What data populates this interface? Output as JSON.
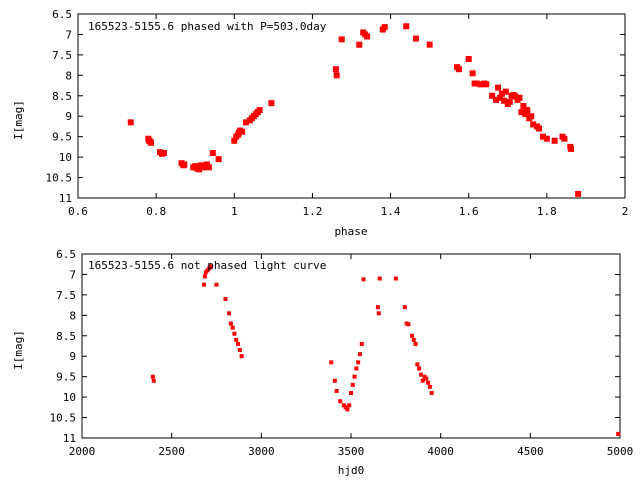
{
  "chart_data": [
    {
      "type": "scatter",
      "title": "165523-5155.6 phased with P=503.0day",
      "xlabel": "phase",
      "ylabel": "I[mag]",
      "xlim": [
        0.6,
        2.0
      ],
      "ylim": [
        6.5,
        11.0
      ],
      "y_inverted": true,
      "grid": false,
      "marker_color": "#ff0000",
      "x_ticks": [
        "0.6",
        "0.8",
        "1",
        "1.2",
        "1.4",
        "1.6",
        "1.8",
        "2"
      ],
      "y_ticks": [
        "6.5",
        "7",
        "7.5",
        "8",
        "8.5",
        "9",
        "9.5",
        "10",
        "10.5",
        "11"
      ],
      "series": [
        {
          "x": [
            0.735,
            0.78,
            0.782,
            0.785,
            0.787,
            0.81,
            0.815,
            0.82,
            0.865,
            0.87,
            0.872,
            0.895,
            0.9,
            0.905,
            0.91,
            0.915,
            0.92,
            0.925,
            0.93,
            0.935,
            0.945,
            0.96,
            1.0,
            1.005,
            1.01,
            1.012,
            1.015,
            1.02,
            1.03,
            1.04,
            1.045,
            1.05,
            1.055,
            1.06,
            1.065,
            1.095,
            1.26,
            1.262,
            1.275,
            1.32,
            1.33,
            1.335,
            1.34,
            1.38,
            1.385,
            1.44,
            1.465,
            1.5,
            1.57,
            1.575,
            1.6,
            1.61,
            1.615,
            1.62,
            1.63,
            1.64,
            1.645,
            1.66,
            1.67,
            1.675,
            1.68,
            1.685,
            1.69,
            1.695,
            1.7,
            1.705,
            1.71,
            1.715,
            1.72,
            1.725,
            1.73,
            1.735,
            1.74,
            1.745,
            1.75,
            1.755,
            1.76,
            1.765,
            1.775,
            1.78,
            1.79,
            1.8,
            1.82,
            1.84,
            1.845,
            1.86,
            1.862,
            1.88
          ],
          "y": [
            9.15,
            9.55,
            9.6,
            9.62,
            9.65,
            9.88,
            9.92,
            9.9,
            10.15,
            10.2,
            10.18,
            10.25,
            10.22,
            10.28,
            10.3,
            10.2,
            10.25,
            10.22,
            10.18,
            10.25,
            9.9,
            10.05,
            9.6,
            9.5,
            9.45,
            9.4,
            9.35,
            9.38,
            9.15,
            9.1,
            9.05,
            9.0,
            8.95,
            8.9,
            8.85,
            8.68,
            7.85,
            8.0,
            7.12,
            7.25,
            6.95,
            7.0,
            7.05,
            6.88,
            6.82,
            6.8,
            7.1,
            7.25,
            7.8,
            7.85,
            7.6,
            7.95,
            8.2,
            8.2,
            8.22,
            8.2,
            8.22,
            8.5,
            8.6,
            8.3,
            8.55,
            8.45,
            8.62,
            8.4,
            8.7,
            8.65,
            8.5,
            8.48,
            8.52,
            8.6,
            8.55,
            8.9,
            8.75,
            8.95,
            8.85,
            9.05,
            9.0,
            9.2,
            9.25,
            9.3,
            9.5,
            9.55,
            9.6,
            9.5,
            9.55,
            9.75,
            9.8,
            10.9
          ]
        }
      ]
    },
    {
      "type": "scatter",
      "title": "165523-5155.6 not phased light curve",
      "xlabel": "hjd0",
      "ylabel": "I[mag]",
      "xlim": [
        2000,
        5000
      ],
      "ylim": [
        6.5,
        11.0
      ],
      "y_inverted": true,
      "grid": false,
      "marker_color": "#ff0000",
      "x_ticks": [
        "2000",
        "2500",
        "3000",
        "3500",
        "4000",
        "4500",
        "5000"
      ],
      "y_ticks": [
        "6.5",
        "7",
        "7.5",
        "8",
        "8.5",
        "9",
        "9.5",
        "10",
        "10.5",
        "11"
      ],
      "series": [
        {
          "x": [
            2395,
            2400,
            2680,
            2685,
            2690,
            2700,
            2710,
            2720,
            2750,
            2800,
            2820,
            2830,
            2840,
            2850,
            2860,
            2870,
            2880,
            2890,
            3390,
            3410,
            3420,
            3440,
            3460,
            3470,
            3480,
            3490,
            3500,
            3510,
            3520,
            3530,
            3540,
            3550,
            3560,
            3570,
            3650,
            3655,
            3660,
            3750,
            3800,
            3810,
            3820,
            3840,
            3850,
            3860,
            3870,
            3880,
            3890,
            3900,
            3910,
            3920,
            3930,
            3940,
            3950,
            4990
          ],
          "y": [
            9.5,
            9.6,
            7.25,
            7.05,
            6.95,
            6.9,
            6.85,
            6.8,
            7.25,
            7.6,
            7.95,
            8.2,
            8.3,
            8.45,
            8.6,
            8.7,
            8.85,
            9.0,
            9.15,
            9.6,
            9.85,
            10.1,
            10.2,
            10.25,
            10.3,
            10.2,
            9.9,
            9.7,
            9.5,
            9.3,
            9.15,
            8.95,
            8.7,
            7.12,
            7.8,
            7.95,
            7.1,
            7.1,
            7.8,
            8.2,
            8.22,
            8.5,
            8.6,
            8.7,
            9.2,
            9.3,
            9.45,
            9.6,
            9.5,
            9.55,
            9.65,
            9.75,
            9.9,
            10.9
          ]
        }
      ]
    }
  ]
}
